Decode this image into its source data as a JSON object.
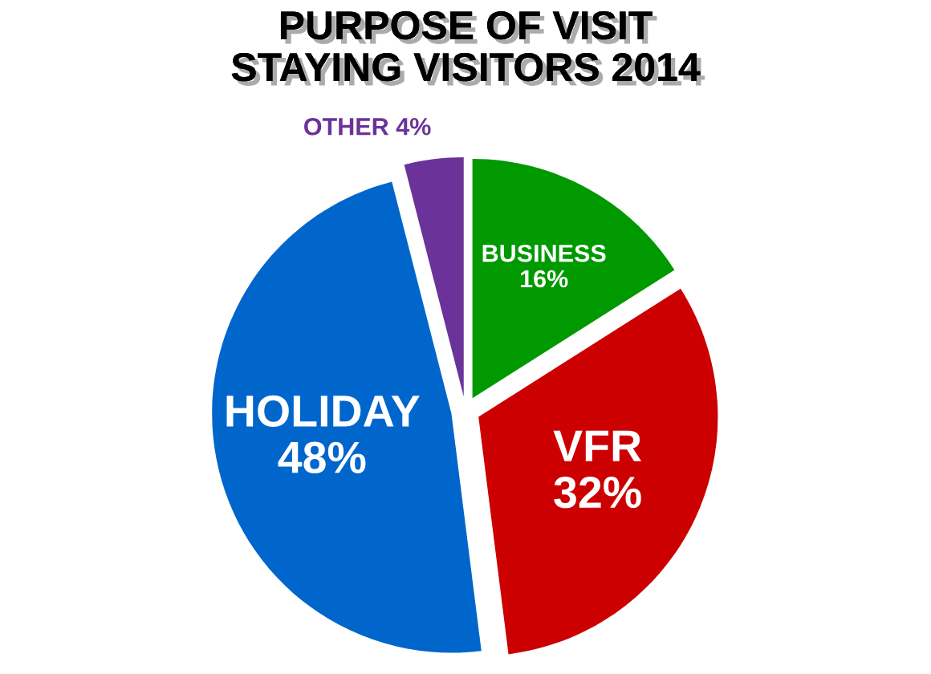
{
  "chart_data": {
    "type": "pie",
    "title": "PURPOSE OF VISIT\nSTAYING VISITORS 2014",
    "categories": [
      "BUSINESS",
      "VFR",
      "HOLIDAY",
      "OTHER"
    ],
    "values": [
      16,
      32,
      48,
      4
    ],
    "value_labels": [
      "16%",
      "32%",
      "48%",
      "4%"
    ],
    "colors": [
      "#009900",
      "#cc0000",
      "#0066cc",
      "#6b3399"
    ]
  }
}
